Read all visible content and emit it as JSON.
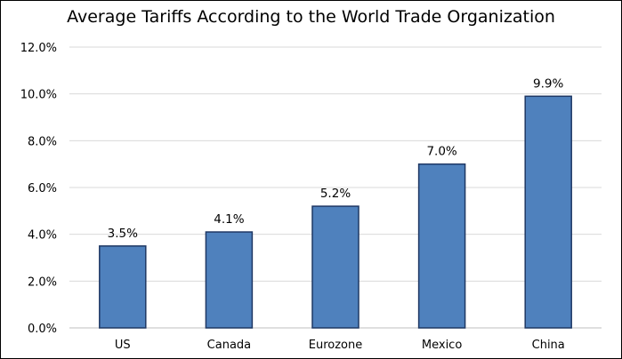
{
  "chart_data": {
    "type": "bar",
    "title": "Average Tariffs According to the World Trade Organization",
    "xlabel": "",
    "ylabel": "",
    "categories": [
      "US",
      "Canada",
      "Eurozone",
      "Mexico",
      "China"
    ],
    "values": [
      3.5,
      4.1,
      5.2,
      7.0,
      9.9
    ],
    "data_labels": [
      "3.5%",
      "4.1%",
      "5.2%",
      "7.0%",
      "9.9%"
    ],
    "ylim": [
      0,
      12
    ],
    "y_ticks": [
      0,
      2,
      4,
      6,
      8,
      10,
      12
    ],
    "y_tick_labels": [
      "0.0%",
      "2.0%",
      "4.0%",
      "6.0%",
      "8.0%",
      "10.0%",
      "12.0%"
    ],
    "grid": true,
    "legend": "none",
    "colors": {
      "bar_fill": "#4f81bd",
      "bar_stroke": "#1f3864",
      "grid": "#d9d9d9",
      "axis": "#bfbfbf"
    }
  }
}
